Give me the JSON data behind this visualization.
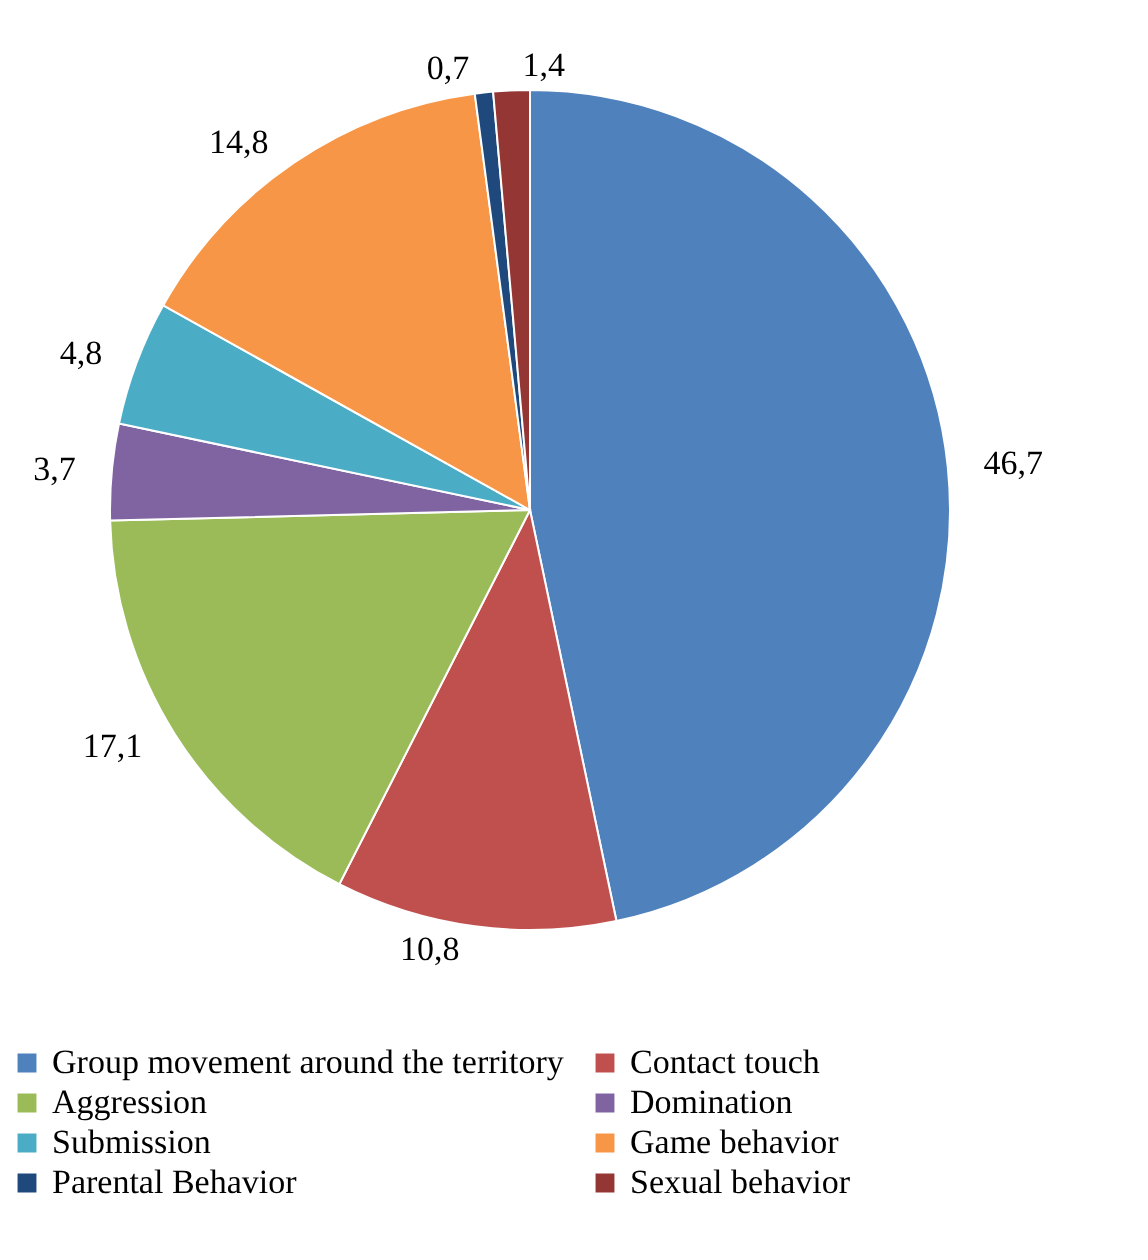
{
  "chart_data": {
    "type": "pie",
    "categories": [
      "Group movement around the territory",
      "Contact touch",
      "Aggression",
      "Domination",
      "Submission",
      "Game behavior",
      "Parental Behavior",
      "Sexual behavior"
    ],
    "values": [
      46.7,
      10.8,
      17.1,
      3.7,
      4.8,
      14.8,
      0.7,
      1.4
    ],
    "value_labels": [
      "46,7",
      "10,8",
      "17,1",
      "3,7",
      "4,8",
      "14,8",
      "0,7",
      "1,4"
    ],
    "colors": [
      "#4f81bd",
      "#c0504d",
      "#9bbb59",
      "#8064a2",
      "#4bacc6",
      "#f79646",
      "#1f497d",
      "#943634"
    ],
    "legend": "bottom"
  }
}
